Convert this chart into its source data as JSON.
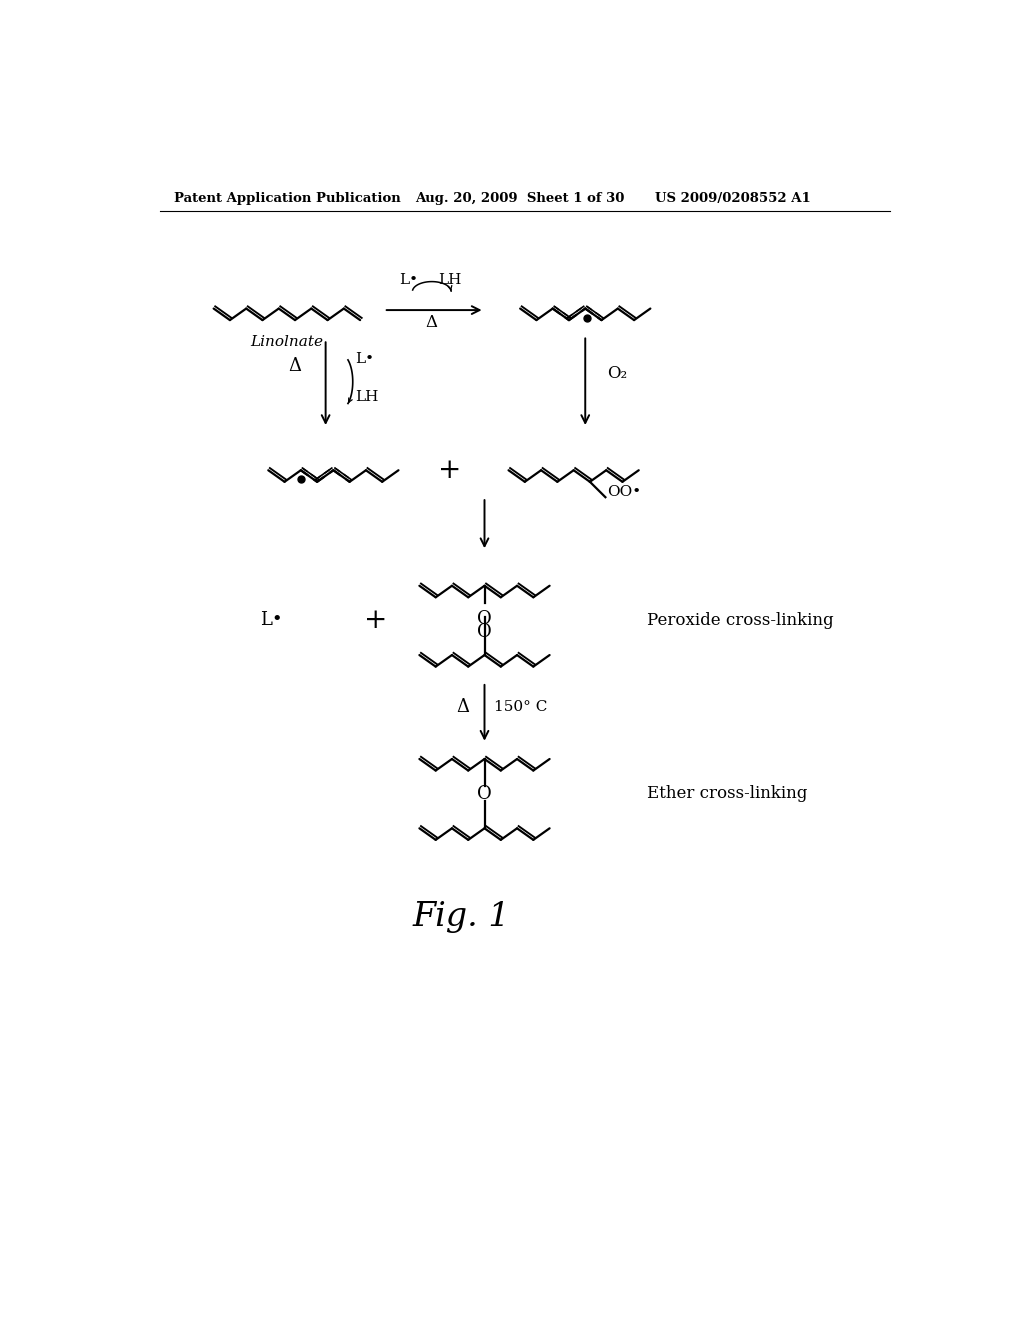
{
  "background_color": "#ffffff",
  "header_left": "Patent Application Publication",
  "header_center": "Aug. 20, 2009  Sheet 1 of 30",
  "header_right": "US 2009/0208552 A1",
  "figure_label": "Fig. 1",
  "labels": {
    "linolnate": "Linolnate",
    "L_dot": "L•",
    "LH": "LH",
    "delta": "Δ",
    "O2": "O₂",
    "OO_rad": "OO•",
    "peroxide": "Peroxide cross-linking",
    "ether": "Ether cross-linking",
    "temp": "150° C",
    "plus": "+"
  }
}
